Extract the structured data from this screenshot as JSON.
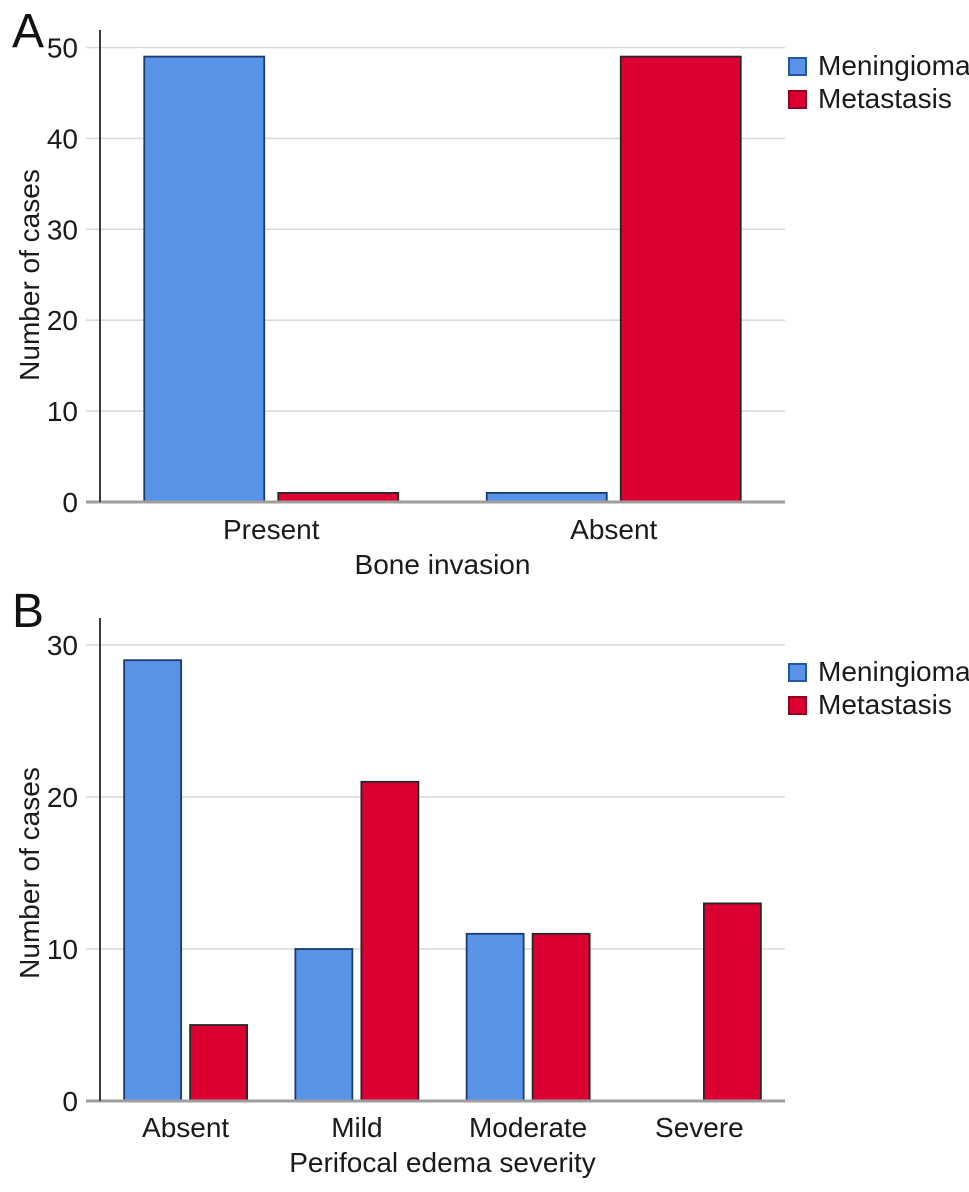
{
  "figure_colors": {
    "meningioma_fill": "#5893E8",
    "meningioma_stroke": "#1B3B6D",
    "metastasis_fill": "#DC0032",
    "metastasis_stroke": "#26262B",
    "gridline": "#D9D9D9",
    "baseline": "#9E9E9E",
    "y_axis_line": "#3B3B3B",
    "text": "#1A1A1A"
  },
  "chart_data": [
    {
      "type": "bar",
      "panel_label": "A",
      "categories": [
        "Present",
        "Absent"
      ],
      "series": [
        {
          "name": "Meningioma",
          "color": "#5893E8",
          "stroke": "#1B3B6D",
          "values": [
            49,
            1
          ]
        },
        {
          "name": "Metastasis",
          "color": "#DC0032",
          "stroke": "#26262B",
          "values": [
            1,
            49
          ]
        }
      ],
      "xlabel": "Bone invasion",
      "ylabel": "Number of cases",
      "yticks": [
        0,
        10,
        20,
        30,
        40,
        50
      ],
      "ylim": [
        0,
        52
      ],
      "grid": true,
      "legend_position": "top-right-outside"
    },
    {
      "type": "bar",
      "panel_label": "B",
      "categories": [
        "Absent",
        "Mild",
        "Moderate",
        "Severe"
      ],
      "series": [
        {
          "name": "Meningioma",
          "color": "#5893E8",
          "stroke": "#1B3B6D",
          "values": [
            29,
            10,
            11,
            0
          ]
        },
        {
          "name": "Metastasis",
          "color": "#DC0032",
          "stroke": "#26262B",
          "values": [
            5,
            21,
            11,
            13
          ]
        }
      ],
      "xlabel": "Perifocal edema severity",
      "ylabel": "Number of cases",
      "yticks": [
        0,
        10,
        20,
        30
      ],
      "ylim": [
        0,
        31.8
      ],
      "grid": true,
      "legend_position": "top-right-outside"
    }
  ]
}
